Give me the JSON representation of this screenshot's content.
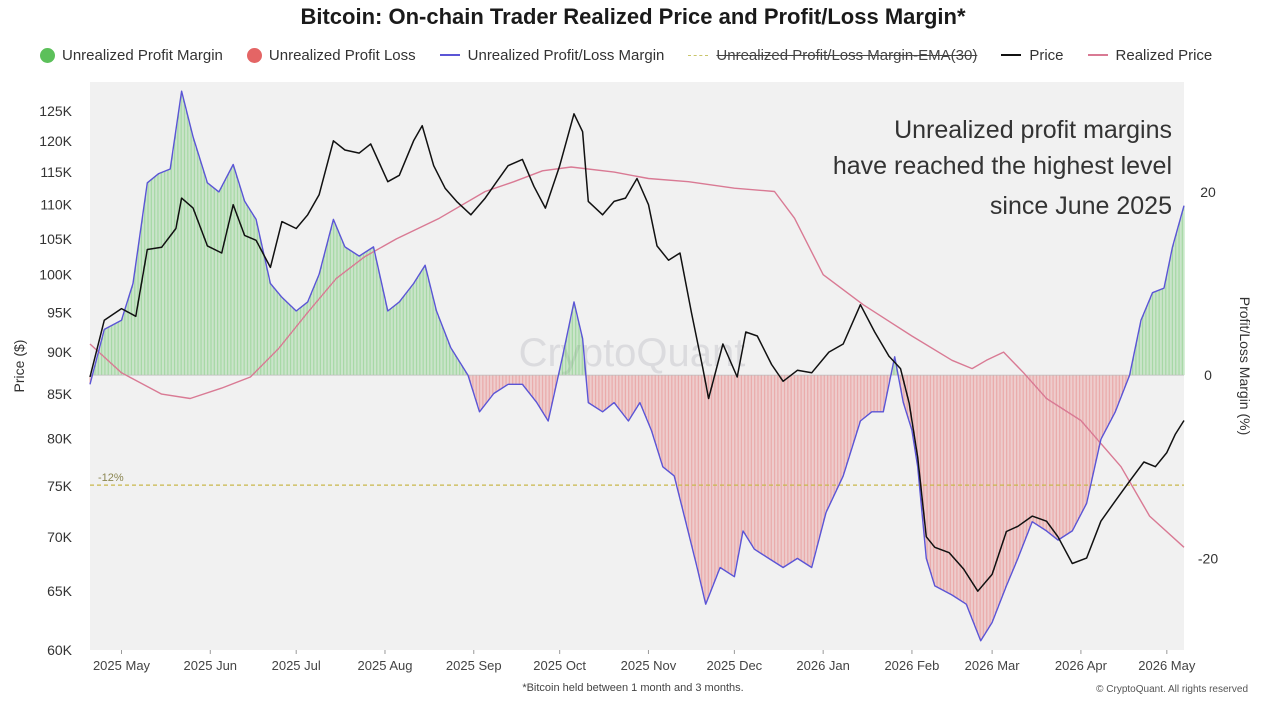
{
  "title": "Bitcoin: On-chain Trader Realized Price and Profit/Loss Margin*",
  "legend": [
    {
      "label": "Unrealized Profit Margin",
      "kind": "dot",
      "color": "#5cc05a",
      "struck": false
    },
    {
      "label": "Unrealized Profit Loss",
      "kind": "dot",
      "color": "#e46565",
      "struck": false
    },
    {
      "label": "Unrealized Profit/Loss Margin",
      "kind": "line",
      "color": "#5b55d6",
      "struck": false
    },
    {
      "label": "Unrealized Profit/Loss Margin-EMA(30)",
      "kind": "dashed",
      "color": "#c9c56a",
      "struck": true
    },
    {
      "label": "Price",
      "kind": "line",
      "color": "#111111",
      "struck": false
    },
    {
      "label": "Realized Price",
      "kind": "line",
      "color": "#d97a94",
      "struck": false
    }
  ],
  "annotation": [
    "Unrealized profit margins",
    "have reached the highest level",
    "since June 2025"
  ],
  "threshold_label": "-12%",
  "watermark": "CryptoQuant",
  "footnote": "*Bitcoin held between 1 month and 3 months.",
  "copyright": "© CryptoQuant. All rights reserved",
  "chart_data": {
    "type": "line",
    "title": "Bitcoin: On-chain Trader Realized Price and Profit/Loss Margin*",
    "xlabel": "",
    "ylabel": "Price ($)",
    "y2label": "Profit/Loss Margin (%)",
    "x_range": [
      "2025-04-20",
      "2026-05-07"
    ],
    "x_ticks": [
      {
        "date": "2025-05-01",
        "label": "2025 May"
      },
      {
        "date": "2025-06-01",
        "label": "2025 Jun"
      },
      {
        "date": "2025-07-01",
        "label": "2025 Jul"
      },
      {
        "date": "2025-08-01",
        "label": "2025 Aug"
      },
      {
        "date": "2025-09-01",
        "label": "2025 Sep"
      },
      {
        "date": "2025-10-01",
        "label": "2025 Oct"
      },
      {
        "date": "2025-11-01",
        "label": "2025 Nov"
      },
      {
        "date": "2025-12-01",
        "label": "2025 Dec"
      },
      {
        "date": "2026-01-01",
        "label": "2026 Jan"
      },
      {
        "date": "2026-02-01",
        "label": "2026 Feb"
      },
      {
        "date": "2026-03-01",
        "label": "2026 Mar"
      },
      {
        "date": "2026-04-01",
        "label": "2026 Apr"
      },
      {
        "date": "2026-05-01",
        "label": "2026 May"
      }
    ],
    "y_scale": "log",
    "ylim": [
      60000,
      130000
    ],
    "y_ticks": [
      {
        "value": 60000,
        "label": "60K"
      },
      {
        "value": 65000,
        "label": "65K"
      },
      {
        "value": 70000,
        "label": "70K"
      },
      {
        "value": 75000,
        "label": "75K"
      },
      {
        "value": 80000,
        "label": "80K"
      },
      {
        "value": 85000,
        "label": "85K"
      },
      {
        "value": 90000,
        "label": "90K"
      },
      {
        "value": 95000,
        "label": "95K"
      },
      {
        "value": 100000,
        "label": "100K"
      },
      {
        "value": 105000,
        "label": "105K"
      },
      {
        "value": 110000,
        "label": "110K"
      },
      {
        "value": 115000,
        "label": "115K"
      },
      {
        "value": 120000,
        "label": "120K"
      },
      {
        "value": 125000,
        "label": "125K"
      }
    ],
    "y2lim": [
      -30,
      32
    ],
    "y2_ticks": [
      {
        "value": 20,
        "label": "20"
      },
      {
        "value": 0,
        "label": "0"
      },
      {
        "value": -20,
        "label": "-20"
      }
    ],
    "threshold": -12,
    "grid": false,
    "legend_position": "top",
    "series": [
      {
        "name": "Price",
        "axis": "left",
        "color": "#111111",
        "points": [
          [
            "2025-04-20",
            87000
          ],
          [
            "2025-04-25",
            94000
          ],
          [
            "2025-05-01",
            95500
          ],
          [
            "2025-05-06",
            94500
          ],
          [
            "2025-05-10",
            103500
          ],
          [
            "2025-05-15",
            103800
          ],
          [
            "2025-05-20",
            106500
          ],
          [
            "2025-05-22",
            111000
          ],
          [
            "2025-05-26",
            109500
          ],
          [
            "2025-05-31",
            104000
          ],
          [
            "2025-06-05",
            103000
          ],
          [
            "2025-06-09",
            110000
          ],
          [
            "2025-06-13",
            105500
          ],
          [
            "2025-06-17",
            104800
          ],
          [
            "2025-06-22",
            101000
          ],
          [
            "2025-06-26",
            107500
          ],
          [
            "2025-07-01",
            106500
          ],
          [
            "2025-07-05",
            108500
          ],
          [
            "2025-07-09",
            111500
          ],
          [
            "2025-07-14",
            120000
          ],
          [
            "2025-07-18",
            118500
          ],
          [
            "2025-07-23",
            118000
          ],
          [
            "2025-07-27",
            119500
          ],
          [
            "2025-08-02",
            113500
          ],
          [
            "2025-08-06",
            114500
          ],
          [
            "2025-08-11",
            120000
          ],
          [
            "2025-08-14",
            122500
          ],
          [
            "2025-08-18",
            116000
          ],
          [
            "2025-08-22",
            112500
          ],
          [
            "2025-08-26",
            110500
          ],
          [
            "2025-08-31",
            108500
          ],
          [
            "2025-09-05",
            111000
          ],
          [
            "2025-09-09",
            113500
          ],
          [
            "2025-09-13",
            116000
          ],
          [
            "2025-09-18",
            117000
          ],
          [
            "2025-09-22",
            112800
          ],
          [
            "2025-09-26",
            109500
          ],
          [
            "2025-10-01",
            116000
          ],
          [
            "2025-10-06",
            124500
          ],
          [
            "2025-10-09",
            121500
          ],
          [
            "2025-10-11",
            110500
          ],
          [
            "2025-10-16",
            108500
          ],
          [
            "2025-10-20",
            110500
          ],
          [
            "2025-10-24",
            111000
          ],
          [
            "2025-10-28",
            114000
          ],
          [
            "2025-11-01",
            110000
          ],
          [
            "2025-11-04",
            104000
          ],
          [
            "2025-11-08",
            102000
          ],
          [
            "2025-11-12",
            103000
          ],
          [
            "2025-11-16",
            95000
          ],
          [
            "2025-11-20",
            88000
          ],
          [
            "2025-11-22",
            84500
          ],
          [
            "2025-11-27",
            91000
          ],
          [
            "2025-12-02",
            87000
          ],
          [
            "2025-12-05",
            92500
          ],
          [
            "2025-12-09",
            92000
          ],
          [
            "2025-12-14",
            88500
          ],
          [
            "2025-12-18",
            86500
          ],
          [
            "2025-12-23",
            87800
          ],
          [
            "2025-12-28",
            87500
          ],
          [
            "2026-01-03",
            90000
          ],
          [
            "2026-01-08",
            91000
          ],
          [
            "2026-01-14",
            96000
          ],
          [
            "2026-01-19",
            92500
          ],
          [
            "2026-01-24",
            89500
          ],
          [
            "2026-01-28",
            88000
          ],
          [
            "2026-01-31",
            84000
          ],
          [
            "2026-02-03",
            78000
          ],
          [
            "2026-02-06",
            70000
          ],
          [
            "2026-02-09",
            69000
          ],
          [
            "2026-02-14",
            68500
          ],
          [
            "2026-02-19",
            67000
          ],
          [
            "2026-02-24",
            65000
          ],
          [
            "2026-03-01",
            66500
          ],
          [
            "2026-03-06",
            70500
          ],
          [
            "2026-03-10",
            71000
          ],
          [
            "2026-03-15",
            72000
          ],
          [
            "2026-03-20",
            71500
          ],
          [
            "2026-03-24",
            70000
          ],
          [
            "2026-03-29",
            67500
          ],
          [
            "2026-04-03",
            68000
          ],
          [
            "2026-04-08",
            71500
          ],
          [
            "2026-04-13",
            73500
          ],
          [
            "2026-04-18",
            75500
          ],
          [
            "2026-04-23",
            77500
          ],
          [
            "2026-04-27",
            77000
          ],
          [
            "2026-05-01",
            78500
          ],
          [
            "2026-05-04",
            80500
          ],
          [
            "2026-05-07",
            82000
          ]
        ]
      },
      {
        "name": "Realized Price",
        "axis": "left",
        "color": "#d97a94",
        "points": [
          [
            "2025-04-20",
            91000
          ],
          [
            "2025-05-01",
            87500
          ],
          [
            "2025-05-15",
            85000
          ],
          [
            "2025-05-25",
            84500
          ],
          [
            "2025-06-05",
            85700
          ],
          [
            "2025-06-15",
            87000
          ],
          [
            "2025-06-25",
            90500
          ],
          [
            "2025-07-05",
            95000
          ],
          [
            "2025-07-15",
            99500
          ],
          [
            "2025-07-25",
            102500
          ],
          [
            "2025-08-05",
            105000
          ],
          [
            "2025-08-20",
            108000
          ],
          [
            "2025-09-05",
            112000
          ],
          [
            "2025-09-15",
            113500
          ],
          [
            "2025-09-25",
            115200
          ],
          [
            "2025-10-05",
            115800
          ],
          [
            "2025-10-20",
            115000
          ],
          [
            "2025-11-01",
            114000
          ],
          [
            "2025-11-15",
            113500
          ],
          [
            "2025-12-01",
            112500
          ],
          [
            "2025-12-15",
            112000
          ],
          [
            "2025-12-22",
            108000
          ],
          [
            "2026-01-01",
            100000
          ],
          [
            "2026-01-15",
            96000
          ],
          [
            "2026-02-01",
            92000
          ],
          [
            "2026-02-15",
            89000
          ],
          [
            "2026-02-22",
            88000
          ],
          [
            "2026-02-27",
            89000
          ],
          [
            "2026-03-05",
            90000
          ],
          [
            "2026-03-12",
            87500
          ],
          [
            "2026-03-20",
            84500
          ],
          [
            "2026-04-01",
            82000
          ],
          [
            "2026-04-15",
            77000
          ],
          [
            "2026-04-25",
            72000
          ],
          [
            "2026-05-07",
            69000
          ]
        ]
      },
      {
        "name": "Unrealized Profit/Loss Margin",
        "axis": "right",
        "color": "#5b55d6",
        "points": [
          [
            "2025-04-20",
            -1
          ],
          [
            "2025-04-25",
            5
          ],
          [
            "2025-05-01",
            6
          ],
          [
            "2025-05-05",
            10
          ],
          [
            "2025-05-10",
            21
          ],
          [
            "2025-05-14",
            22
          ],
          [
            "2025-05-18",
            22.5
          ],
          [
            "2025-05-22",
            31
          ],
          [
            "2025-05-26",
            26
          ],
          [
            "2025-05-31",
            21
          ],
          [
            "2025-06-04",
            20
          ],
          [
            "2025-06-09",
            23
          ],
          [
            "2025-06-13",
            19
          ],
          [
            "2025-06-17",
            17
          ],
          [
            "2025-06-22",
            10
          ],
          [
            "2025-06-26",
            8.5
          ],
          [
            "2025-07-01",
            7
          ],
          [
            "2025-07-05",
            8
          ],
          [
            "2025-07-09",
            11
          ],
          [
            "2025-07-14",
            17
          ],
          [
            "2025-07-18",
            14
          ],
          [
            "2025-07-23",
            13
          ],
          [
            "2025-07-28",
            14
          ],
          [
            "2025-08-02",
            7
          ],
          [
            "2025-08-06",
            8
          ],
          [
            "2025-08-11",
            10
          ],
          [
            "2025-08-15",
            12
          ],
          [
            "2025-08-19",
            7
          ],
          [
            "2025-08-24",
            3
          ],
          [
            "2025-08-30",
            0
          ],
          [
            "2025-09-03",
            -4
          ],
          [
            "2025-09-08",
            -2
          ],
          [
            "2025-09-13",
            -1
          ],
          [
            "2025-09-18",
            -1
          ],
          [
            "2025-09-23",
            -3
          ],
          [
            "2025-09-27",
            -5
          ],
          [
            "2025-10-02",
            2
          ],
          [
            "2025-10-06",
            8
          ],
          [
            "2025-10-09",
            4
          ],
          [
            "2025-10-11",
            -3
          ],
          [
            "2025-10-16",
            -4
          ],
          [
            "2025-10-20",
            -3
          ],
          [
            "2025-10-25",
            -5
          ],
          [
            "2025-10-29",
            -3
          ],
          [
            "2025-11-02",
            -6
          ],
          [
            "2025-11-06",
            -10
          ],
          [
            "2025-11-10",
            -11
          ],
          [
            "2025-11-14",
            -16
          ],
          [
            "2025-11-18",
            -21
          ],
          [
            "2025-11-21",
            -25
          ],
          [
            "2025-11-26",
            -21
          ],
          [
            "2025-12-01",
            -22
          ],
          [
            "2025-12-04",
            -17
          ],
          [
            "2025-12-08",
            -19
          ],
          [
            "2025-12-13",
            -20
          ],
          [
            "2025-12-18",
            -21
          ],
          [
            "2025-12-23",
            -20
          ],
          [
            "2025-12-28",
            -21
          ],
          [
            "2026-01-02",
            -15
          ],
          [
            "2026-01-08",
            -11
          ],
          [
            "2026-01-14",
            -5
          ],
          [
            "2026-01-18",
            -4
          ],
          [
            "2026-01-22",
            -4
          ],
          [
            "2026-01-26",
            2
          ],
          [
            "2026-01-29",
            -3
          ],
          [
            "2026-02-01",
            -6
          ],
          [
            "2026-02-03",
            -10
          ],
          [
            "2026-02-06",
            -20
          ],
          [
            "2026-02-09",
            -23
          ],
          [
            "2026-02-15",
            -24
          ],
          [
            "2026-02-20",
            -25
          ],
          [
            "2026-02-25",
            -29
          ],
          [
            "2026-03-01",
            -27
          ],
          [
            "2026-03-06",
            -23
          ],
          [
            "2026-03-10",
            -20
          ],
          [
            "2026-03-15",
            -16
          ],
          [
            "2026-03-20",
            -17
          ],
          [
            "2026-03-24",
            -18
          ],
          [
            "2026-03-29",
            -17
          ],
          [
            "2026-04-03",
            -14
          ],
          [
            "2026-04-08",
            -7
          ],
          [
            "2026-04-13",
            -4
          ],
          [
            "2026-04-18",
            0
          ],
          [
            "2026-04-22",
            6
          ],
          [
            "2026-04-26",
            9
          ],
          [
            "2026-04-30",
            9.5
          ],
          [
            "2026-05-03",
            14
          ],
          [
            "2026-05-07",
            18.5
          ]
        ]
      }
    ]
  }
}
